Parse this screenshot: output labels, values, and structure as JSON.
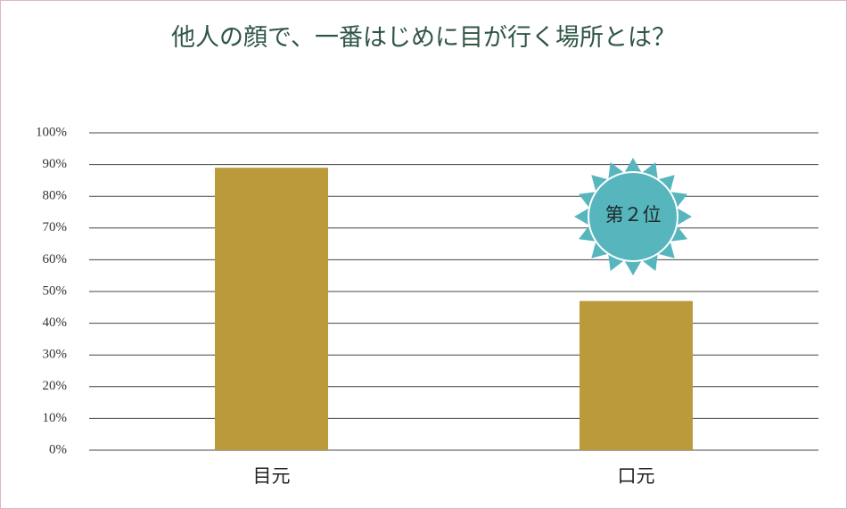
{
  "chart_data": {
    "type": "bar",
    "title": "他人の顔で、一番はじめに目が行く場所とは？",
    "categories": [
      "目元",
      "口元"
    ],
    "values": [
      89,
      47
    ],
    "color": "#bb9a3b",
    "ylim": [
      0,
      100
    ],
    "yticks": [
      {
        "value": 0,
        "label": "0%"
      },
      {
        "value": 10,
        "label": "10%"
      },
      {
        "value": 20,
        "label": "20%"
      },
      {
        "value": 30,
        "label": "30%"
      },
      {
        "value": 40,
        "label": "40%"
      },
      {
        "value": 50,
        "label": "50%"
      },
      {
        "value": 60,
        "label": "60%"
      },
      {
        "value": 70,
        "label": "70%"
      },
      {
        "value": 80,
        "label": "80%"
      },
      {
        "value": 90,
        "label": "90%"
      },
      {
        "value": 100,
        "label": "100%"
      }
    ],
    "grid": true,
    "annotation": "第２位"
  }
}
